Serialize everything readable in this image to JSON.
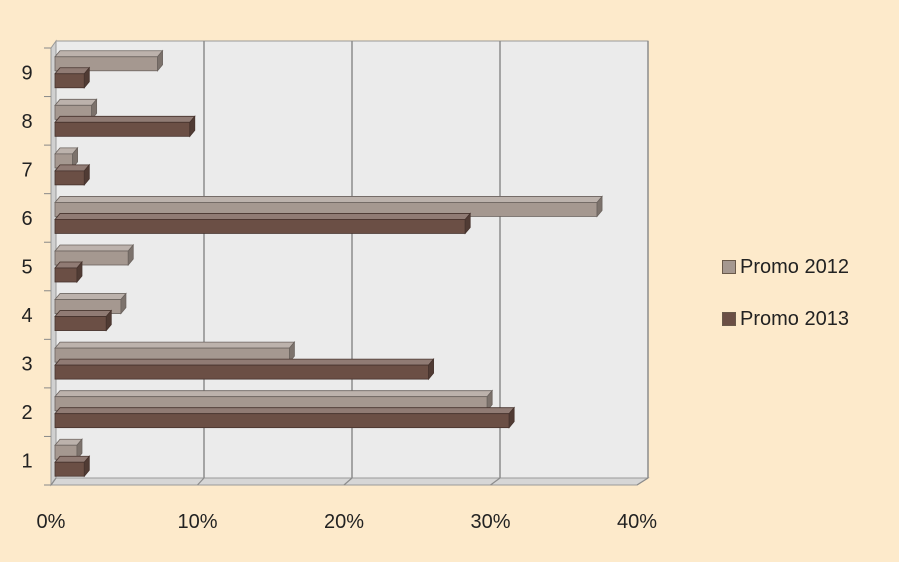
{
  "chart_data": {
    "type": "bar",
    "orientation": "horizontal",
    "categories": [
      "1",
      "2",
      "3",
      "4",
      "5",
      "6",
      "7",
      "8",
      "9"
    ],
    "series": [
      {
        "name": "Promo 2012",
        "color": "#a59890",
        "values": [
          1.5,
          29.5,
          16.0,
          4.5,
          5.0,
          37.0,
          1.2,
          2.5,
          7.0
        ]
      },
      {
        "name": "Promo 2013",
        "color": "#6b4f45",
        "values": [
          2.0,
          31.0,
          25.5,
          3.5,
          1.5,
          28.0,
          2.0,
          9.2,
          2.0
        ]
      }
    ],
    "xlim": [
      0,
      40
    ],
    "x_ticks": [
      "0%",
      "10%",
      "20%",
      "30%",
      "40%"
    ],
    "grid": true,
    "legend_position": "right",
    "style": "3d"
  }
}
